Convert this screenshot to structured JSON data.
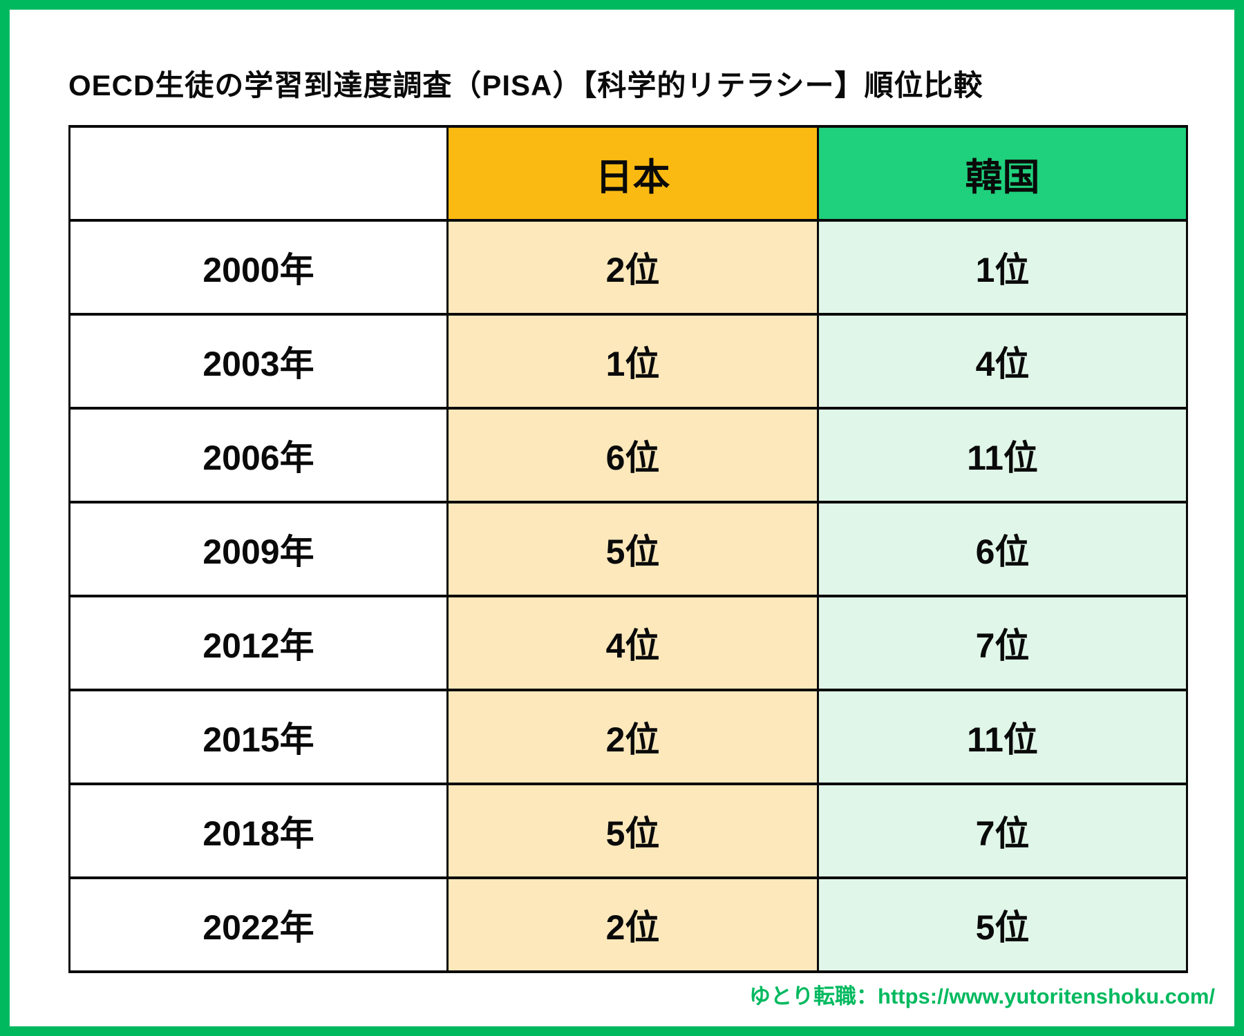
{
  "title": "OECD生徒の学習到達度調査（PISA）【科学的リテラシー】順位比較",
  "footer": {
    "credit": "ゆとり転職：https://www.yutoritenshoku.com/"
  },
  "colors": {
    "frame_green": "#00b95f",
    "header_orange": "#fbba12",
    "cell_orange": "#fce8bb",
    "header_green": "#1fd07c",
    "cell_green": "#e0f6e8",
    "footer_green": "#00b95f",
    "grid_black": "#0a0a0a"
  },
  "chart_data": {
    "type": "table",
    "title": "OECD生徒の学習到達度調査（PISA）【科学的リテラシー】順位比較",
    "columns": [
      "",
      "日本",
      "韓国"
    ],
    "rows": [
      [
        "2000年",
        "2位",
        "1位"
      ],
      [
        "2003年",
        "1位",
        "4位"
      ],
      [
        "2006年",
        "6位",
        "11位"
      ],
      [
        "2009年",
        "5位",
        "6位"
      ],
      [
        "2012年",
        "4位",
        "7位"
      ],
      [
        "2015年",
        "2位",
        "11位"
      ],
      [
        "2018年",
        "5位",
        "7位"
      ],
      [
        "2022年",
        "2位",
        "5位"
      ]
    ]
  }
}
